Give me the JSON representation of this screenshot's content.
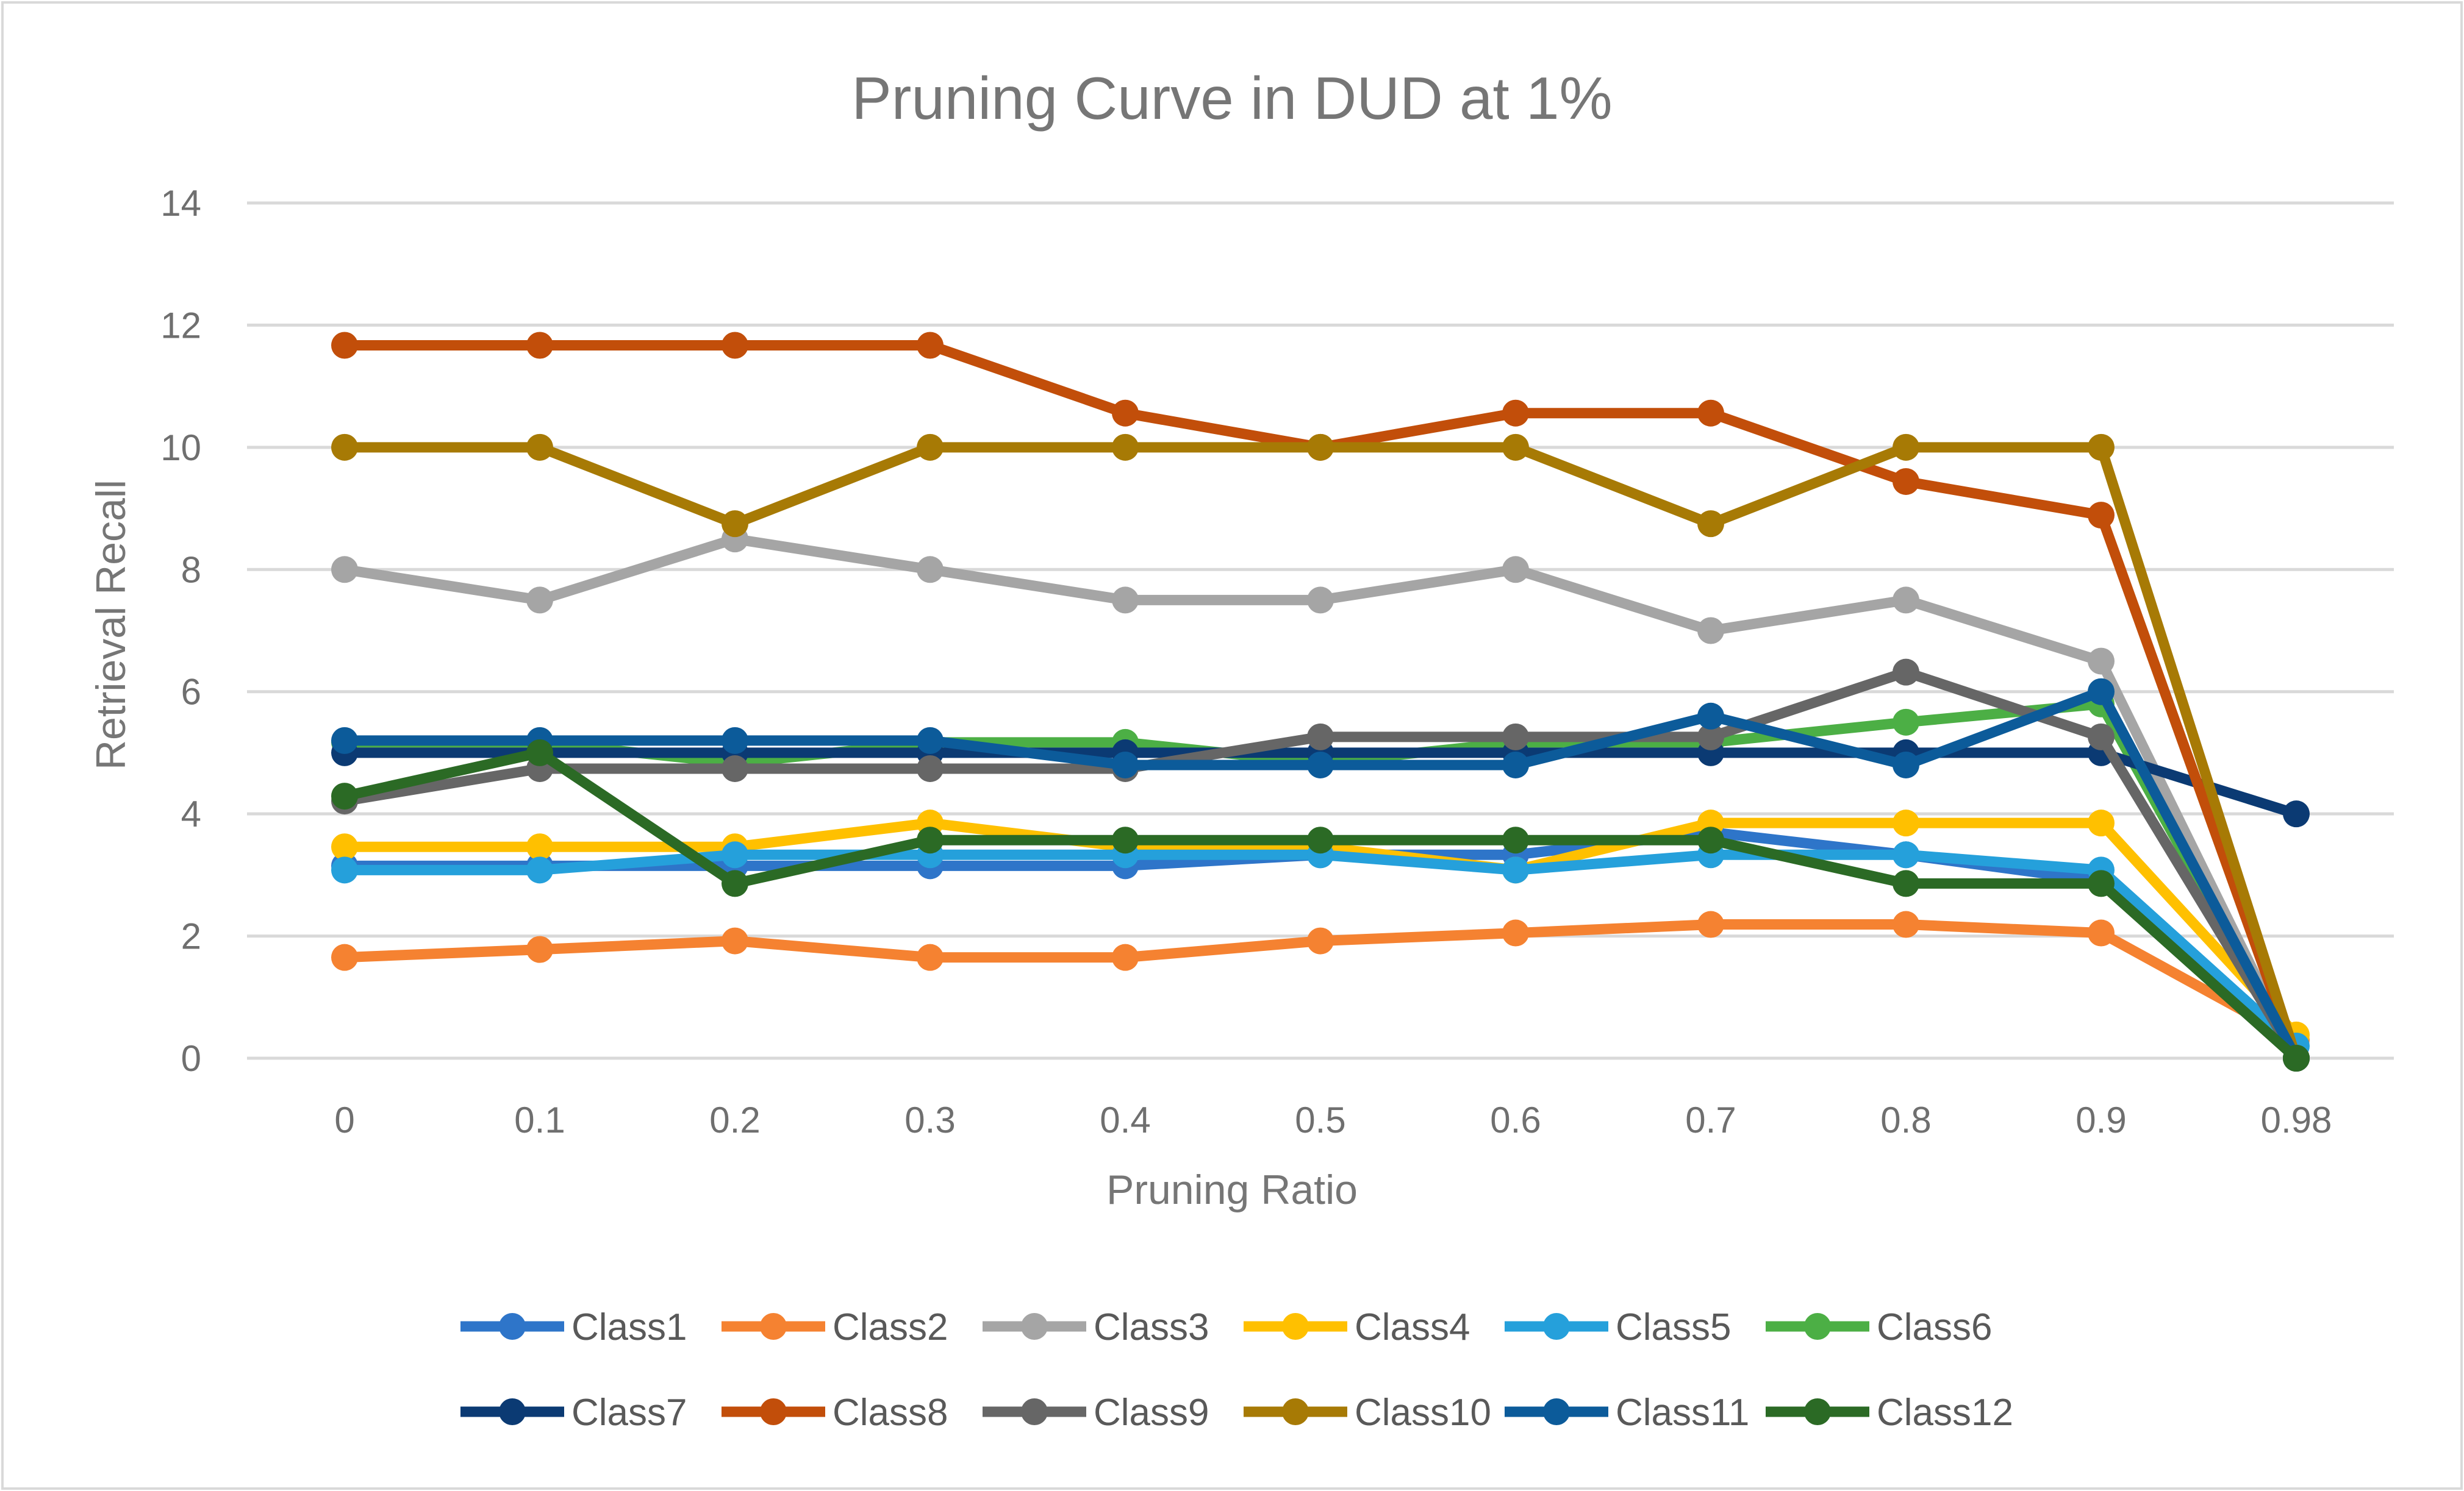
{
  "chart_data": {
    "type": "line",
    "title": "Pruning Curve in DUD at 1%",
    "xlabel": "Pruning Ratio",
    "ylabel": "Retrieval Recall",
    "categories": [
      "0",
      "0.1",
      "0.2",
      "0.3",
      "0.4",
      "0.5",
      "0.6",
      "0.7",
      "0.8",
      "0.9",
      "0.98"
    ],
    "ylim": [
      0,
      14
    ],
    "yticks": [
      0,
      2,
      4,
      6,
      8,
      10,
      12,
      14
    ],
    "grid": true,
    "legend_position": "bottom",
    "series": [
      {
        "name": "Class1",
        "color": "#2E75C9",
        "values": [
          3.15,
          3.15,
          3.15,
          3.15,
          3.15,
          3.33,
          3.33,
          3.7,
          3.33,
          2.9,
          0.0
        ]
      },
      {
        "name": "Class2",
        "color": "#F58231",
        "values": [
          1.65,
          1.78,
          1.92,
          1.65,
          1.65,
          1.92,
          2.05,
          2.19,
          2.19,
          2.05,
          0.3
        ]
      },
      {
        "name": "Class3",
        "color": "#A5A5A5",
        "values": [
          8.0,
          7.5,
          8.5,
          8.0,
          7.5,
          7.5,
          8.0,
          7.0,
          7.5,
          6.5,
          0.0
        ]
      },
      {
        "name": "Class4",
        "color": "#FFC000",
        "values": [
          3.46,
          3.46,
          3.46,
          3.85,
          3.46,
          3.46,
          3.08,
          3.85,
          3.85,
          3.85,
          0.38
        ]
      },
      {
        "name": "Class5",
        "color": "#25A0DB",
        "values": [
          3.08,
          3.08,
          3.33,
          3.33,
          3.33,
          3.33,
          3.08,
          3.33,
          3.33,
          3.08,
          0.2
        ]
      },
      {
        "name": "Class6",
        "color": "#4CAF45",
        "values": [
          5.17,
          5.17,
          4.83,
          5.17,
          5.17,
          4.83,
          5.17,
          5.17,
          5.5,
          5.8,
          0.0
        ]
      },
      {
        "name": "Class7",
        "color": "#0B3A73",
        "values": [
          5.0,
          5.0,
          5.0,
          5.0,
          5.0,
          5.0,
          5.0,
          5.0,
          5.0,
          5.0,
          4.0
        ]
      },
      {
        "name": "Class8",
        "color": "#C24E0A",
        "values": [
          11.67,
          11.67,
          11.67,
          11.67,
          10.56,
          10.0,
          10.56,
          10.56,
          9.44,
          8.89,
          0.0
        ]
      },
      {
        "name": "Class9",
        "color": "#666666",
        "values": [
          4.21,
          4.74,
          4.74,
          4.74,
          4.74,
          5.26,
          5.26,
          5.26,
          6.32,
          5.26,
          0.0
        ]
      },
      {
        "name": "Class10",
        "color": "#A77A05",
        "values": [
          10.0,
          10.0,
          8.75,
          10.0,
          10.0,
          10.0,
          10.0,
          8.75,
          10.0,
          10.0,
          0.0
        ]
      },
      {
        "name": "Class11",
        "color": "#0C5B9A",
        "values": [
          5.2,
          5.2,
          5.2,
          5.2,
          4.8,
          4.8,
          4.8,
          5.6,
          4.8,
          6.0,
          0.0
        ]
      },
      {
        "name": "Class12",
        "color": "#2B6A25",
        "values": [
          4.29,
          5.0,
          2.86,
          3.57,
          3.57,
          3.57,
          3.57,
          3.57,
          2.86,
          2.86,
          0.0
        ]
      }
    ]
  }
}
